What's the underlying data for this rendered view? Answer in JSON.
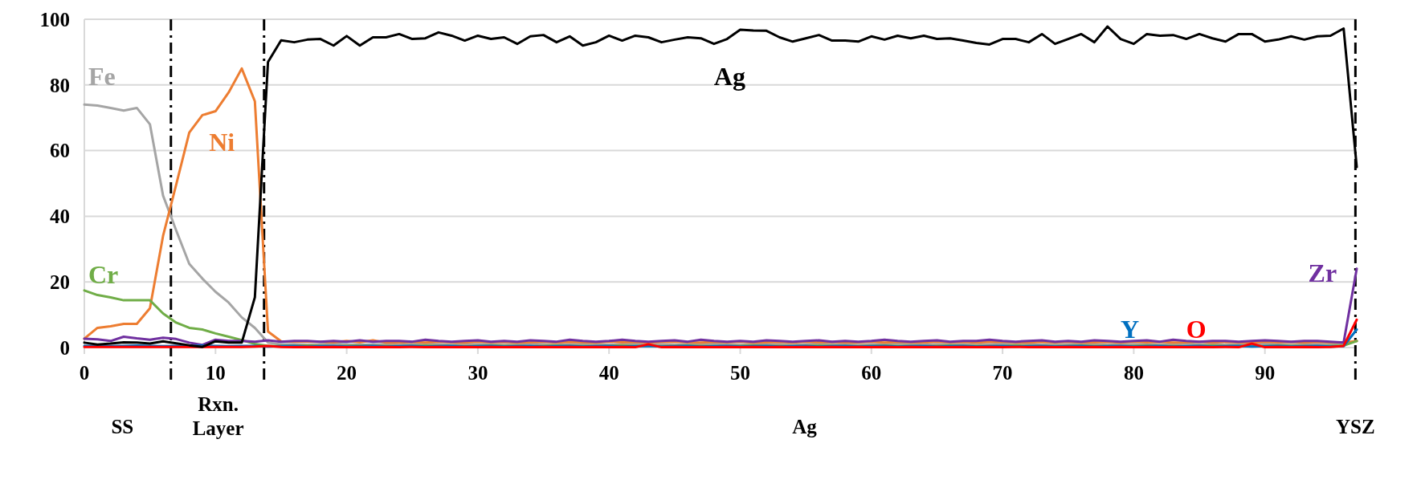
{
  "chart_data": {
    "type": "line",
    "x": [
      0,
      1,
      2,
      3,
      4,
      5,
      6,
      7,
      8,
      9,
      10,
      11,
      12,
      13,
      14,
      15,
      16,
      17,
      18,
      19,
      20,
      21,
      22,
      23,
      24,
      25,
      26,
      27,
      28,
      29,
      30,
      31,
      32,
      33,
      34,
      35,
      36,
      37,
      38,
      39,
      40,
      41,
      42,
      43,
      44,
      45,
      46,
      47,
      48,
      49,
      50,
      51,
      52,
      53,
      54,
      55,
      56,
      57,
      58,
      59,
      60,
      61,
      62,
      63,
      64,
      65,
      66,
      67,
      68,
      69,
      70,
      71,
      72,
      73,
      74,
      75,
      76,
      77,
      78,
      79,
      80,
      81,
      82,
      83,
      84,
      85,
      86,
      87,
      88,
      89,
      90,
      91,
      92,
      93,
      94,
      95,
      96,
      97
    ],
    "xlim": [
      0,
      97
    ],
    "xticks": [
      0,
      10,
      20,
      30,
      40,
      50,
      60,
      70,
      80,
      90
    ],
    "ylim": [
      0,
      100
    ],
    "yticks": [
      0,
      20,
      40,
      60,
      80,
      100
    ],
    "grid": "y",
    "marker": "none",
    "line_style": "solid",
    "series": [
      {
        "name": "Fe",
        "color": "#a5a5a5",
        "values": [
          74,
          73.7,
          73,
          72.2,
          73,
          68,
          46.3,
          35.7,
          25.5,
          21,
          17,
          13.7,
          9.2,
          6,
          1.5,
          1,
          1,
          0.8,
          1,
          1.2,
          1,
          0.8,
          1,
          1,
          0.8,
          1,
          1.2,
          1,
          0.8,
          1,
          1,
          1,
          0.8,
          1,
          1.2,
          1,
          0.8,
          1,
          1,
          1,
          0.8,
          1,
          1.2,
          1,
          1,
          0.8,
          1,
          1,
          1.2,
          1,
          0.8,
          1,
          1,
          1,
          0.8,
          1,
          1.2,
          1,
          1,
          0.8,
          1,
          1,
          1.2,
          1,
          0.8,
          1,
          1,
          1,
          0.8,
          1,
          1.2,
          1,
          1,
          0.8,
          1,
          1,
          1.2,
          1,
          0.8,
          1,
          1,
          1,
          0.8,
          1,
          1.2,
          1,
          1,
          0.8,
          1,
          1,
          1.2,
          1,
          0.8,
          1,
          1,
          1,
          1,
          2
        ]
      },
      {
        "name": "Ni",
        "color": "#ed7d31",
        "values": [
          2.7,
          6,
          6.5,
          7.2,
          7.2,
          12,
          34,
          49.6,
          65.5,
          70.8,
          72,
          77.7,
          85,
          75,
          4.9,
          1.9,
          1.8,
          1.8,
          1.8,
          1.6,
          2,
          1.6,
          2.2,
          1.5,
          1.5,
          1.7,
          1.5,
          1.8,
          1.6,
          1.5,
          1.8,
          1.6,
          1.7,
          1.5,
          1.6,
          1.8,
          1.5,
          1.7,
          1.6,
          1.5,
          1.8,
          1.6,
          1.7,
          1.5,
          1.7,
          1.8,
          1.6,
          1.5,
          1.7,
          1.6,
          1.8,
          1.5,
          1.6,
          1.7,
          1.5,
          1.8,
          1.6,
          1.7,
          1.5,
          1.6,
          1.8,
          1.5,
          1.7,
          1.6,
          1.5,
          1.8,
          1.6,
          1.7,
          1.5,
          1.7,
          1.8,
          1.6,
          1.5,
          1.7,
          1.6,
          1.8,
          1.5,
          1.6,
          1.7,
          1.5,
          1.8,
          1.6,
          1.7,
          1.5,
          1.6,
          1.8,
          1.5,
          1.7,
          1.6,
          1.5,
          1.8,
          1.6,
          1.7,
          1.5,
          1.7,
          1.6,
          1.5,
          2
        ]
      },
      {
        "name": "Cr",
        "color": "#70ad47",
        "values": [
          17.4,
          16,
          15.3,
          14.4,
          14.4,
          14.4,
          10.4,
          7.6,
          6,
          5.5,
          4.3,
          3.3,
          2.3,
          1.1,
          0.5,
          0.5,
          0.5,
          0.6,
          0.5,
          0.4,
          0.5,
          0.6,
          0.5,
          0.5,
          0.4,
          0.5,
          0.6,
          0.5,
          0.5,
          0.4,
          0.5,
          0.6,
          0.5,
          0.5,
          0.4,
          0.5,
          0.6,
          0.5,
          0.5,
          0.4,
          0.5,
          0.6,
          0.5,
          0.5,
          0.4,
          0.5,
          0.6,
          0.5,
          0.5,
          0.4,
          0.5,
          0.6,
          0.5,
          0.5,
          0.4,
          0.5,
          0.6,
          0.5,
          0.5,
          0.4,
          0.5,
          0.6,
          0.5,
          0.5,
          0.4,
          0.5,
          0.6,
          0.5,
          0.5,
          0.4,
          0.5,
          0.6,
          0.5,
          0.5,
          0.4,
          0.5,
          0.6,
          0.5,
          0.5,
          0.4,
          0.5,
          0.6,
          0.5,
          0.5,
          0.4,
          0.5,
          0.6,
          0.5,
          0.5,
          0.4,
          0.5,
          0.6,
          0.5,
          0.5,
          0.4,
          0.5,
          0.6,
          2
        ]
      },
      {
        "name": "Zr",
        "color": "#7030a0",
        "values": [
          2.7,
          2.5,
          2,
          3.3,
          2.8,
          2.4,
          3,
          2.6,
          1.5,
          0.8,
          2.4,
          2,
          2,
          1.8,
          2.2,
          1.8,
          2,
          2,
          1.8,
          2,
          1.8,
          2.2,
          1.8,
          2,
          2,
          1.8,
          2.4,
          2,
          1.8,
          2,
          2.2,
          1.8,
          2,
          1.8,
          2.2,
          2,
          1.8,
          2.4,
          2,
          1.8,
          2,
          2.4,
          2,
          1.8,
          2,
          2.2,
          1.8,
          2.4,
          2,
          1.8,
          2,
          1.8,
          2.2,
          2,
          1.8,
          2,
          2.2,
          1.8,
          2,
          1.8,
          2,
          2.4,
          2,
          1.8,
          2,
          2.2,
          1.8,
          2,
          2,
          2.4,
          2,
          1.8,
          2,
          2.2,
          1.8,
          2,
          1.8,
          2.2,
          2,
          1.8,
          2,
          2.2,
          1.8,
          2.4,
          2,
          1.8,
          2,
          2,
          1.8,
          2,
          2.2,
          2,
          1.8,
          2,
          2,
          1.8,
          1.5,
          24
        ]
      },
      {
        "name": "Y",
        "color": "#0070c0",
        "values": [
          0.5,
          0.5,
          0.4,
          0.5,
          0.6,
          0.5,
          0.4,
          0.5,
          0.5,
          0.6,
          0.5,
          0.4,
          0.5,
          0.5,
          0.3,
          0.4,
          0.5,
          0.3,
          0.4,
          0.5,
          0.3,
          0.4,
          0.5,
          0.3,
          0.4,
          0.5,
          0.3,
          0.4,
          0.5,
          0.3,
          0.4,
          0.5,
          0.3,
          0.4,
          0.5,
          0.3,
          0.4,
          0.5,
          0.3,
          0.4,
          0.5,
          0.3,
          0.4,
          0.5,
          0.3,
          0.4,
          0.5,
          0.3,
          0.4,
          0.5,
          0.3,
          0.4,
          0.5,
          0.3,
          0.4,
          0.5,
          0.3,
          0.4,
          0.5,
          0.3,
          0.4,
          0.5,
          0.3,
          0.4,
          0.5,
          0.3,
          0.4,
          0.5,
          0.3,
          0.4,
          0.5,
          0.3,
          0.4,
          0.5,
          0.3,
          0.4,
          0.5,
          0.3,
          0.4,
          0.5,
          0.3,
          0.4,
          0.5,
          0.3,
          0.4,
          0.5,
          0.3,
          0.4,
          0.5,
          0.3,
          0.4,
          0.5,
          0.3,
          0.4,
          0.5,
          0.3,
          0.4,
          5.5
        ]
      },
      {
        "name": "O",
        "color": "#ff0000",
        "values": [
          0.2,
          0.2,
          0.2,
          0.2,
          0.2,
          0.2,
          0.2,
          0.2,
          0.2,
          0.2,
          0.2,
          0.2,
          0.2,
          0.3,
          0.5,
          0.2,
          0.1,
          0.2,
          0.1,
          0.2,
          0.1,
          0.2,
          0.1,
          0.2,
          0.1,
          0.2,
          0.1,
          0.2,
          0.1,
          0.2,
          0.1,
          0.2,
          0.1,
          0.2,
          0.1,
          0.2,
          0.1,
          0.2,
          0.1,
          0.2,
          0.1,
          0.2,
          0.1,
          1,
          0.1,
          0.2,
          0.1,
          0.2,
          0.1,
          0.2,
          0.1,
          0.2,
          0.1,
          0.2,
          0.1,
          0.2,
          0.1,
          0.2,
          0.1,
          0.2,
          0.1,
          0.2,
          0.1,
          0.2,
          0.1,
          0.2,
          0.1,
          0.2,
          0.1,
          0.2,
          0.1,
          0.2,
          0.1,
          0.2,
          0.1,
          0.2,
          0.1,
          0.2,
          0.1,
          0.2,
          0.1,
          0.2,
          0.1,
          0.2,
          0.1,
          0.2,
          0.1,
          0.2,
          0.1,
          1.2,
          0.1,
          0.2,
          0.1,
          0.2,
          0.1,
          0.2,
          0.5,
          8.5
        ]
      },
      {
        "name": "Ag",
        "color": "#000000",
        "values": [
          1.5,
          0.9,
          1.2,
          1.6,
          1.5,
          1.2,
          1.9,
          1.3,
          0.7,
          0.2,
          1.9,
          1.5,
          1.5,
          15.3,
          87,
          93.6,
          93,
          93.8,
          94,
          92,
          94.9,
          92,
          94.5,
          94.5,
          95.5,
          94,
          94.2,
          96,
          95,
          93.5,
          95,
          94,
          94.5,
          92.5,
          94.8,
          95.2,
          93,
          94.8,
          92,
          93,
          95,
          93.5,
          95,
          94.5,
          93,
          93.8,
          94.5,
          94.2,
          92.5,
          94,
          96.8,
          96.6,
          96.5,
          94.5,
          93.2,
          94.2,
          95.2,
          93.5,
          93.5,
          93.2,
          94.8,
          93.8,
          95,
          94.2,
          95,
          94,
          94.2,
          93.5,
          92.8,
          92.3,
          94,
          94,
          93,
          95.5,
          92.5,
          94,
          95.5,
          93,
          97.8,
          94,
          92.5,
          95.5,
          95,
          95.2,
          94,
          95.5,
          94.2,
          93.2,
          95.5,
          95.5,
          93.2,
          93.8,
          94.8,
          93.8,
          94.8,
          95,
          97.2,
          55
        ]
      }
    ],
    "ref_lines": [
      {
        "axis": "x",
        "value": 6.6,
        "line_style": "dashed",
        "color": "#000000"
      },
      {
        "axis": "x",
        "value": 13.7,
        "line_style": "dashed",
        "color": "#000000"
      },
      {
        "axis": "x",
        "value": 96.9,
        "line_style": "dashed",
        "color": "#000000"
      }
    ],
    "annotations": [
      "SS",
      "Rxn. Layer",
      "Ag",
      "YSZ"
    ]
  }
}
